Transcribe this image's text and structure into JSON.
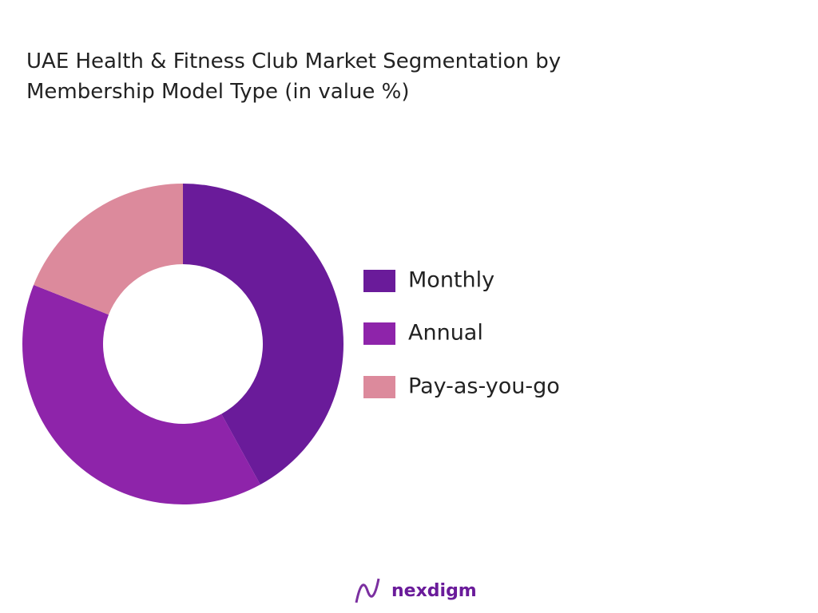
{
  "chart_data": {
    "type": "donut",
    "title": "UAE Health & Fitness Club Market Segmentation by Membership Model Type (in value %)",
    "categories": [
      "Monthly",
      "Annual",
      "Pay-as-you-go"
    ],
    "values": [
      42,
      39,
      19
    ],
    "colors": [
      "#6a1b9a",
      "#8e24aa",
      "#dc8a9c"
    ],
    "legend": "right"
  },
  "logo": "nexdigm"
}
